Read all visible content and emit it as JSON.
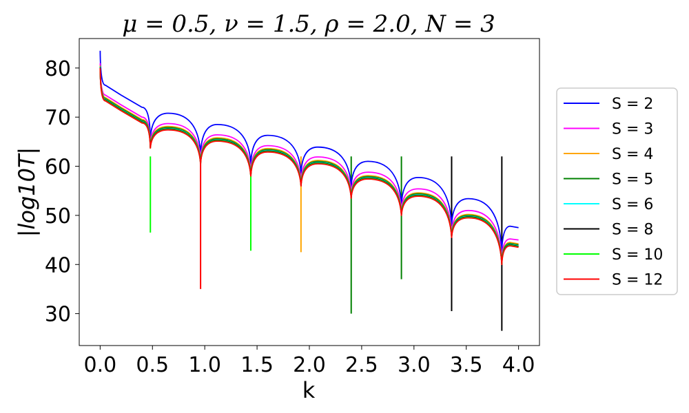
{
  "chart_data": {
    "type": "line",
    "title": "μ = 0.5, ν = 1.5, ρ = 2.0, N = 3",
    "xlabel": "k",
    "ylabel": "|log10T|",
    "xlim": [
      -0.2,
      4.2
    ],
    "ylim": [
      23.5,
      86
    ],
    "xticks": [
      0.0,
      0.5,
      1.0,
      1.5,
      2.0,
      2.5,
      3.0,
      3.5,
      4.0
    ],
    "xtick_labels": [
      "0.0",
      "0.5",
      "1.0",
      "1.5",
      "2.0",
      "2.5",
      "3.0",
      "3.5",
      "4.0"
    ],
    "yticks": [
      30,
      40,
      50,
      60,
      70,
      80
    ],
    "ytick_labels": [
      "30",
      "40",
      "50",
      "60",
      "70",
      "80"
    ],
    "grid": false,
    "legend_position": "right-outside",
    "dip_k": [
      0.0,
      0.48,
      0.96,
      1.44,
      1.92,
      2.4,
      2.88,
      3.36,
      3.84
    ],
    "series": [
      {
        "name": "S = 2",
        "color": "#0000ff",
        "k": [
          0.0,
          0.05,
          0.2,
          0.4,
          0.48,
          0.65,
          0.96,
          1.12,
          1.44,
          1.6,
          1.92,
          2.08,
          2.4,
          2.56,
          2.88,
          3.04,
          3.36,
          3.52,
          3.84,
          3.92,
          4.0
        ],
        "y": [
          83.5,
          76.5,
          74.5,
          72.0,
          65.5,
          70.8,
          62.5,
          68.5,
          60.5,
          66.3,
          58.5,
          63.9,
          55.8,
          61.0,
          52.0,
          57.7,
          48.0,
          53.4,
          42.5,
          47.8,
          47.5
        ]
      },
      {
        "name": "S = 3",
        "color": "#ff00ff",
        "k": [
          0.0,
          0.05,
          0.2,
          0.4,
          0.48,
          0.65,
          0.96,
          1.12,
          1.44,
          1.6,
          1.92,
          2.08,
          2.4,
          2.56,
          2.88,
          3.04,
          3.36,
          3.52,
          3.84,
          3.92,
          4.0
        ],
        "y": [
          81.0,
          74.5,
          72.5,
          70.0,
          64.5,
          68.7,
          61.5,
          66.4,
          59.0,
          64.2,
          57.0,
          61.9,
          54.5,
          58.8,
          51.0,
          55.4,
          46.5,
          51.0,
          41.0,
          45.2,
          45.0
        ]
      },
      {
        "name": "S = 4",
        "color": "#ffa500",
        "k": [
          0.0,
          0.05,
          0.2,
          0.4,
          0.48,
          0.65,
          0.96,
          1.12,
          1.44,
          1.6,
          1.92,
          2.08,
          2.4,
          2.56,
          2.88,
          3.04,
          3.36,
          3.52,
          3.84,
          3.92,
          4.0
        ],
        "y": [
          80.5,
          74.0,
          72.0,
          69.5,
          64.2,
          68.1,
          61.0,
          65.8,
          58.5,
          63.6,
          56.5,
          61.2,
          54.0,
          58.1,
          50.5,
          54.6,
          46.0,
          50.2,
          40.5,
          44.5,
          44.2
        ]
      },
      {
        "name": "S = 5",
        "color": "#008000",
        "k": [
          0.0,
          0.05,
          0.2,
          0.4,
          0.48,
          0.65,
          0.96,
          1.12,
          1.44,
          1.6,
          1.92,
          2.08,
          2.4,
          2.56,
          2.88,
          3.04,
          3.36,
          3.52,
          3.84,
          3.92,
          4.0
        ],
        "y": [
          80.3,
          73.8,
          71.8,
          69.3,
          64.0,
          67.9,
          60.8,
          65.6,
          58.3,
          63.4,
          56.3,
          61.0,
          53.8,
          57.9,
          50.3,
          54.4,
          45.8,
          50.0,
          40.3,
          44.3,
          44.0
        ]
      },
      {
        "name": "S = 6",
        "color": "#00ffff",
        "k": [
          0.0,
          0.05,
          0.2,
          0.4,
          0.48,
          0.65,
          0.96,
          1.12,
          1.44,
          1.6,
          1.92,
          2.08,
          2.4,
          2.56,
          2.88,
          3.04,
          3.36,
          3.52,
          3.84,
          3.92,
          4.0
        ],
        "y": [
          80.2,
          73.6,
          71.6,
          69.1,
          63.9,
          67.7,
          60.7,
          65.4,
          58.2,
          63.2,
          56.2,
          60.8,
          53.7,
          57.7,
          50.2,
          54.2,
          45.7,
          49.8,
          40.2,
          44.1,
          43.8
        ]
      },
      {
        "name": "S = 8",
        "color": "#000000",
        "k": [
          0.0,
          0.05,
          0.2,
          0.4,
          0.48,
          0.65,
          0.96,
          1.12,
          1.44,
          1.6,
          1.92,
          2.08,
          2.4,
          2.56,
          2.88,
          3.04,
          3.36,
          3.52,
          3.84,
          3.92,
          4.0
        ],
        "y": [
          80.1,
          73.5,
          71.5,
          69.0,
          63.8,
          67.6,
          60.6,
          65.3,
          58.1,
          63.1,
          56.1,
          60.7,
          53.6,
          57.6,
          50.1,
          54.1,
          45.6,
          49.7,
          40.1,
          44.0,
          43.7
        ]
      },
      {
        "name": "S = 10",
        "color": "#00ff00",
        "k": [
          0.0,
          0.05,
          0.2,
          0.4,
          0.48,
          0.65,
          0.96,
          1.12,
          1.44,
          1.6,
          1.92,
          2.08,
          2.4,
          2.56,
          2.88,
          3.04,
          3.36,
          3.52,
          3.84,
          3.92,
          4.0
        ],
        "y": [
          80.0,
          73.4,
          71.4,
          68.9,
          63.7,
          67.5,
          60.5,
          65.2,
          58.0,
          63.0,
          56.0,
          60.6,
          53.5,
          57.5,
          50.0,
          54.0,
          45.5,
          49.6,
          40.0,
          43.9,
          43.6
        ]
      },
      {
        "name": "S = 12",
        "color": "#ff0000",
        "k": [
          0.0,
          0.05,
          0.2,
          0.4,
          0.48,
          0.65,
          0.96,
          1.12,
          1.44,
          1.6,
          1.92,
          2.08,
          2.4,
          2.56,
          2.88,
          3.04,
          3.36,
          3.52,
          3.84,
          3.92,
          4.0
        ],
        "y": [
          80.0,
          73.3,
          71.3,
          68.8,
          63.6,
          67.4,
          60.4,
          65.1,
          57.9,
          62.9,
          55.9,
          60.5,
          53.4,
          57.4,
          49.9,
          53.9,
          45.4,
          49.5,
          39.9,
          43.8,
          43.5
        ]
      }
    ],
    "spikes": [
      {
        "k": 0.48,
        "y_min": 46.5,
        "color": "#00ff00"
      },
      {
        "k": 0.96,
        "y_min": 35.0,
        "color": "#ff0000"
      },
      {
        "k": 1.44,
        "y_min": 42.8,
        "color": "#00ff00"
      },
      {
        "k": 1.92,
        "y_min": 42.5,
        "color": "#ffa500"
      },
      {
        "k": 2.4,
        "y_min": 30.0,
        "color": "#008000"
      },
      {
        "k": 2.88,
        "y_min": 37.0,
        "color": "#008000"
      },
      {
        "k": 3.36,
        "y_min": 30.5,
        "color": "#000000"
      },
      {
        "k": 3.84,
        "y_min": 26.5,
        "color": "#000000"
      }
    ]
  }
}
